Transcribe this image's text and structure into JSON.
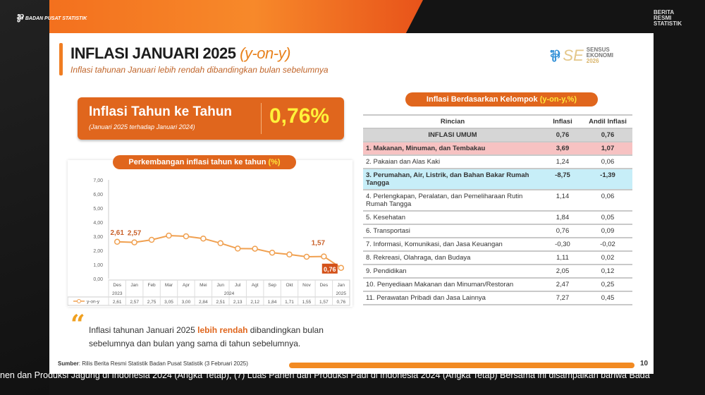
{
  "broadcast": {
    "brand": "BADAN PUSAT STATISTIK",
    "corner": [
      "BERITA",
      "RESMI",
      "STATISTIK"
    ],
    "ticker": "nen dan Produksi Jagung di Indonesia 2024 (Angka Tetap), (7) Luas Panen dan Produksi Padi di Indonesia 2024 (Angka Tetap) Bersama ini disampaikan bahwa Bada"
  },
  "slide": {
    "title": "INFLASI JANUARI 2025 ",
    "title_italic": "(y-on-y)",
    "subtitle": "Inflasi tahunan Januari lebih rendah dibandingkan bulan sebelumnya",
    "logo_text": [
      "SENSUS",
      "EKONOMI",
      "2026"
    ],
    "kpi": {
      "label": "Inflasi Tahun ke Tahun",
      "sublabel": "(Januari 2025 terhadap Januari 2024)",
      "value": "0,76%"
    },
    "chart_pill": "Perkembangan inflasi tahun ke tahun ",
    "chart_pill_hl": "(%)",
    "quote": {
      "pre": "Inflasi tahunan Januari 2025 ",
      "hl": "lebih rendah",
      "post": " dibandingkan bulan sebelumnya dan bulan yang sama di tahun sebelumnya."
    },
    "table_pill": "Inflasi Berdasarkan Kelompok ",
    "table_pill_hl": "(y-on-y,%)",
    "table": {
      "headers": [
        "Rincian",
        "Inflasi",
        "Andil Inflasi"
      ],
      "rows": [
        {
          "label": "INFLASI UMUM",
          "inflasi": "0,76",
          "andil": "0,76",
          "style": "umum"
        },
        {
          "label": "1.  Makanan, Minuman, dan Tembakau",
          "inflasi": "3,69",
          "andil": "1,07",
          "style": "hot"
        },
        {
          "label": "2.  Pakaian dan Alas Kaki",
          "inflasi": "1,24",
          "andil": "0,06",
          "style": ""
        },
        {
          "label": "3.  Perumahan, Air, Listrik, dan Bahan Bakar Rumah Tangga",
          "inflasi": "-8,75",
          "andil": "-1,39",
          "style": "cool"
        },
        {
          "label": "4.  Perlengkapan, Peralatan, dan Pemeliharaan Rutin Rumah Tangga",
          "inflasi": "1,14",
          "andil": "0,06",
          "style": ""
        },
        {
          "label": "5.  Kesehatan",
          "inflasi": "1,84",
          "andil": "0,05",
          "style": ""
        },
        {
          "label": "6.  Transportasi",
          "inflasi": "0,76",
          "andil": "0,09",
          "style": ""
        },
        {
          "label": "7.  Informasi, Komunikasi, dan Jasa Keuangan",
          "inflasi": "-0,30",
          "andil": "-0,02",
          "style": ""
        },
        {
          "label": "8.  Rekreasi, Olahraga, dan Budaya",
          "inflasi": "1,11",
          "andil": "0,02",
          "style": ""
        },
        {
          "label": "9.  Pendidikan",
          "inflasi": "2,05",
          "andil": "0,12",
          "style": ""
        },
        {
          "label": "10. Penyediaan Makanan dan Minuman/Restoran",
          "inflasi": "2,47",
          "andil": "0,25",
          "style": ""
        },
        {
          "label": "11. Perawatan Pribadi dan Jasa Lainnya",
          "inflasi": "7,27",
          "andil": "0,45",
          "style": ""
        }
      ]
    },
    "footer": {
      "source_label": "Sumber",
      "source": ": Rilis Berita Resmi Statistik Badan Pusat Statistik (3 Februari 2025)",
      "page": "10"
    }
  },
  "chart_data": {
    "type": "line",
    "categories": [
      "Des",
      "Jan",
      "Feb",
      "Mar",
      "Apr",
      "Mei",
      "Jun",
      "Jul",
      "Agt",
      "Sep",
      "Okt",
      "Nov",
      "Des",
      "Jan"
    ],
    "year_labels": [
      {
        "label": "2023",
        "from": 0,
        "to": 0
      },
      {
        "label": "2024",
        "from": 1,
        "to": 12
      },
      {
        "label": "2025",
        "from": 13,
        "to": 13
      }
    ],
    "series": [
      {
        "name": "y-on-y",
        "values": [
          2.61,
          2.57,
          2.75,
          3.05,
          3.0,
          2.84,
          2.51,
          2.13,
          2.12,
          1.84,
          1.71,
          1.55,
          1.57,
          0.76
        ],
        "labels": [
          "2,61",
          "2,57",
          "2,75",
          "3,05",
          "3,00",
          "2,84",
          "2,51",
          "2,13",
          "2,12",
          "1,84",
          "1,71",
          "1,55",
          "1,57",
          "0,76"
        ]
      }
    ],
    "annotations": [
      {
        "index": 0,
        "text": "2,61"
      },
      {
        "index": 1,
        "text": "2,57"
      },
      {
        "index": 12,
        "text": "1,57"
      },
      {
        "index": 13,
        "text": "0,76",
        "highlight": true
      }
    ],
    "yticks": [
      "0,00",
      "1,00",
      "2,00",
      "3,00",
      "4,00",
      "5,00",
      "6,00",
      "7,00"
    ],
    "ylim": [
      0,
      7
    ],
    "grid": false,
    "color": "#f0a050"
  }
}
